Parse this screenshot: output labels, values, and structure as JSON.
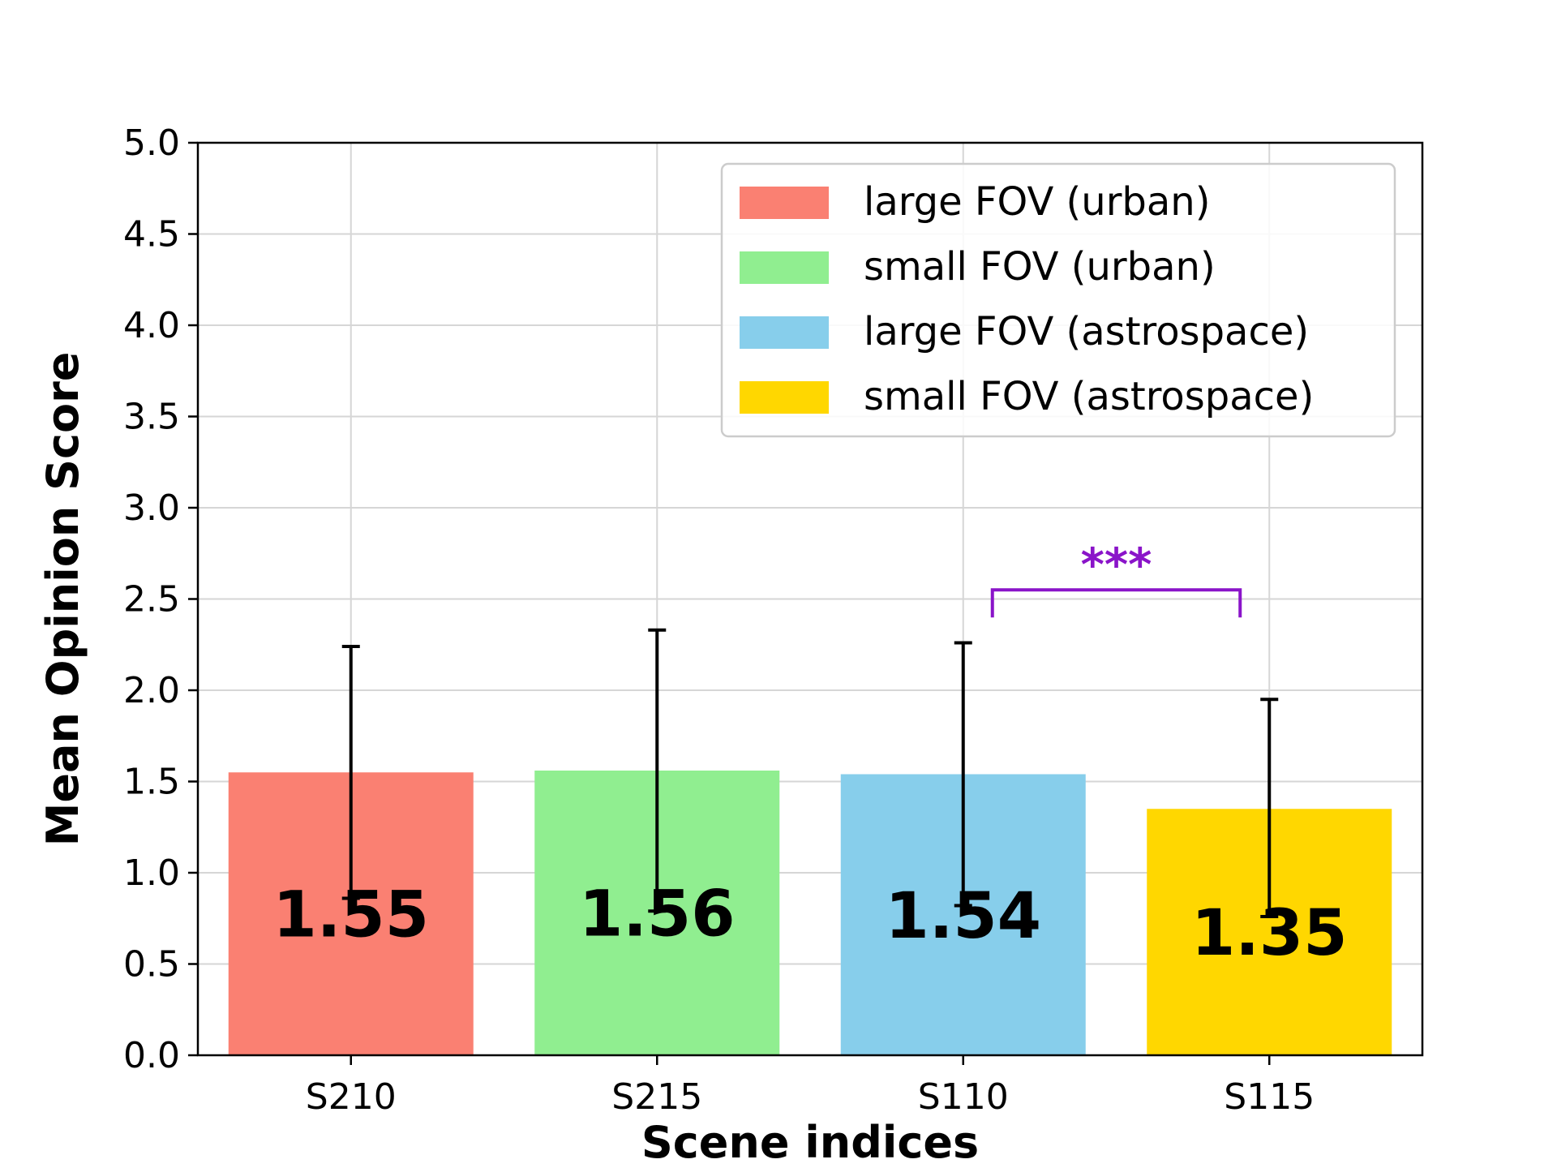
{
  "chart_data": {
    "type": "bar",
    "categories": [
      "S210",
      "S215",
      "S110",
      "S115"
    ],
    "values": [
      1.55,
      1.56,
      1.54,
      1.35
    ],
    "value_labels": [
      "1.55",
      "1.56",
      "1.54",
      "1.35"
    ],
    "error_bars": [
      {
        "low": 0.86,
        "high": 2.24
      },
      {
        "low": 0.79,
        "high": 2.33
      },
      {
        "low": 0.82,
        "high": 2.26
      },
      {
        "low": 0.76,
        "high": 1.95
      }
    ],
    "colors": [
      "#fa8072",
      "#90ee90",
      "#87ceeb",
      "#ffd700"
    ],
    "xlabel": "Scene indices",
    "ylabel": "Mean Opinion Score",
    "ylim": [
      0,
      5
    ],
    "yticks": [
      "0.0",
      "0.5",
      "1.0",
      "1.5",
      "2.0",
      "2.5",
      "3.0",
      "3.5",
      "4.0",
      "4.5",
      "5.0"
    ],
    "grid": true,
    "legend": {
      "placement": "top-right",
      "entries": [
        "large FOV (urban)",
        "small FOV (urban)",
        "large FOV (astrospace)",
        "small FOV (astrospace)"
      ]
    },
    "annotations": [
      {
        "text": "***",
        "color": "#8a14c9",
        "from_category": "S110",
        "to_category": "S115",
        "level": 2.55
      }
    ]
  }
}
